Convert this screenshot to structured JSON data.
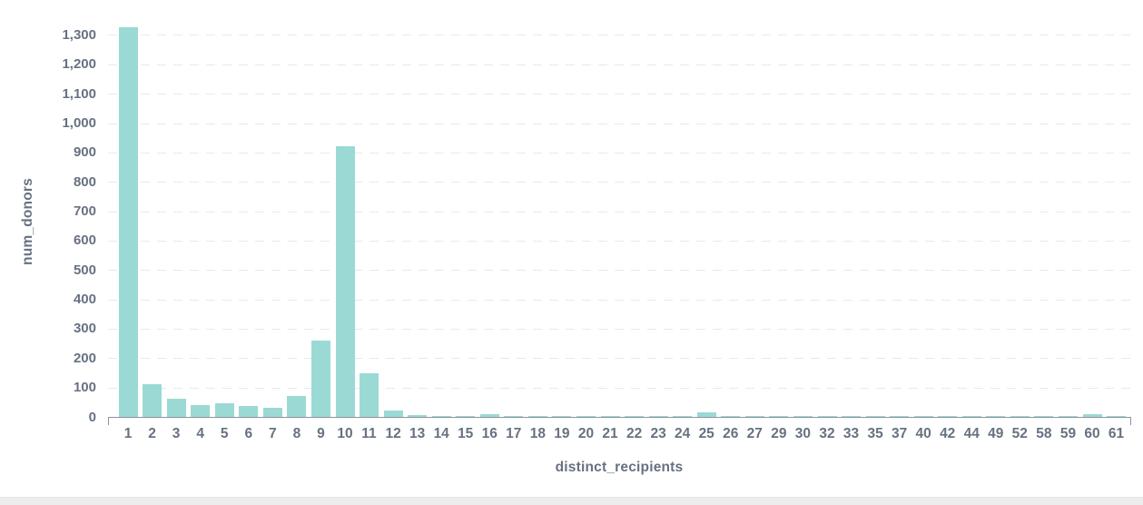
{
  "chart_data": {
    "type": "bar",
    "title": "",
    "xlabel": "distinct_recipients",
    "ylabel": "num_donors",
    "legend": "none",
    "grid": "horizontal-dashed",
    "ylim": [
      0,
      1360
    ],
    "ytick_step": 100,
    "ytick_max": 1300,
    "categories": [
      "1",
      "2",
      "3",
      "4",
      "5",
      "6",
      "7",
      "8",
      "9",
      "10",
      "11",
      "12",
      "13",
      "14",
      "15",
      "16",
      "17",
      "18",
      "19",
      "20",
      "21",
      "22",
      "23",
      "24",
      "25",
      "26",
      "27",
      "29",
      "30",
      "32",
      "33",
      "35",
      "37",
      "40",
      "42",
      "44",
      "49",
      "52",
      "58",
      "59",
      "60",
      "61"
    ],
    "values": [
      1325,
      110,
      62,
      40,
      47,
      38,
      30,
      72,
      260,
      920,
      147,
      22,
      5,
      4,
      4,
      9,
      3,
      4,
      4,
      4,
      3,
      4,
      4,
      4,
      16,
      4,
      3,
      3,
      4,
      4,
      4,
      3,
      3,
      3,
      3,
      3,
      3,
      3,
      4,
      3,
      9,
      4
    ],
    "colors": {
      "bar": "#9bd9d4",
      "axis_text": "#677181",
      "gridline": "#e9e9e9",
      "axis_line": "#8d939e",
      "background": "#ffffff",
      "bottom_strip": "#ededed"
    }
  }
}
